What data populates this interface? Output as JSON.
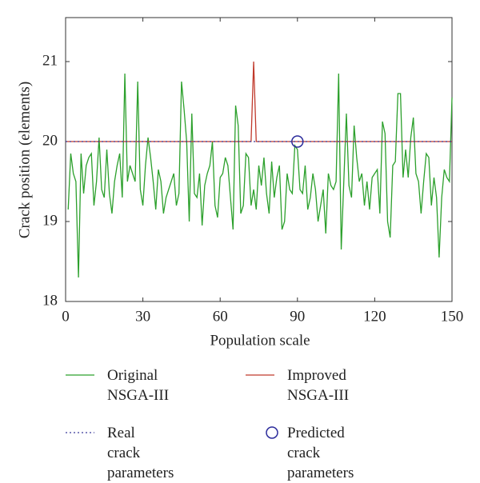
{
  "chart_data": {
    "type": "line",
    "xlabel": "Population scale",
    "ylabel": "Crack position (elements)",
    "xlim": [
      0,
      150
    ],
    "ylim": [
      18,
      21.55
    ],
    "xticks": [
      0,
      30,
      60,
      90,
      120,
      150
    ],
    "yticks": [
      18,
      19,
      20,
      21
    ],
    "series": [
      {
        "name": "Original NSGA-III",
        "color": "#2ca02c",
        "style": "solid",
        "x": [
          1,
          2,
          3,
          4,
          5,
          6,
          7,
          8,
          9,
          10,
          11,
          12,
          13,
          14,
          15,
          16,
          17,
          18,
          19,
          20,
          21,
          22,
          23,
          24,
          25,
          26,
          27,
          28,
          29,
          30,
          31,
          32,
          33,
          34,
          35,
          36,
          37,
          38,
          39,
          40,
          41,
          42,
          43,
          44,
          45,
          46,
          47,
          48,
          49,
          50,
          51,
          52,
          53,
          54,
          55,
          56,
          57,
          58,
          59,
          60,
          61,
          62,
          63,
          64,
          65,
          66,
          67,
          68,
          69,
          70,
          71,
          72,
          73,
          74,
          75,
          76,
          77,
          78,
          79,
          80,
          81,
          82,
          83,
          84,
          85,
          86,
          87,
          88,
          89,
          90,
          91,
          92,
          93,
          94,
          95,
          96,
          97,
          98,
          99,
          100,
          101,
          102,
          103,
          104,
          105,
          106,
          107,
          108,
          109,
          110,
          111,
          112,
          113,
          114,
          115,
          116,
          117,
          118,
          119,
          120,
          121,
          122,
          123,
          124,
          125,
          126,
          127,
          128,
          129,
          130,
          131,
          132,
          133,
          134,
          135,
          136,
          137,
          138,
          139,
          140,
          141,
          142,
          143,
          144,
          145,
          146,
          147,
          148,
          149,
          150
        ],
        "values": [
          19.15,
          19.85,
          19.6,
          19.5,
          18.3,
          19.85,
          19.35,
          19.7,
          19.8,
          19.85,
          19.2,
          19.5,
          20.05,
          19.4,
          19.3,
          19.9,
          19.35,
          19.1,
          19.5,
          19.7,
          19.85,
          19.3,
          20.85,
          19.5,
          19.7,
          19.6,
          19.5,
          20.75,
          19.4,
          19.2,
          19.7,
          20.05,
          19.8,
          19.5,
          19.15,
          19.65,
          19.5,
          19.1,
          19.3,
          19.4,
          19.5,
          19.6,
          19.2,
          19.35,
          20.75,
          20.4,
          20.0,
          19.0,
          20.35,
          19.35,
          19.3,
          19.6,
          18.95,
          19.45,
          19.6,
          19.7,
          20.0,
          19.2,
          19.05,
          19.55,
          19.6,
          19.8,
          19.7,
          19.3,
          18.9,
          20.45,
          20.2,
          19.1,
          19.2,
          19.85,
          19.8,
          19.2,
          19.4,
          19.15,
          19.7,
          19.45,
          19.8,
          19.35,
          19.1,
          19.75,
          19.3,
          19.55,
          19.7,
          18.9,
          19.0,
          19.6,
          19.4,
          19.35,
          19.95,
          19.9,
          19.4,
          19.35,
          19.7,
          19.15,
          19.3,
          19.6,
          19.4,
          19.0,
          19.2,
          19.4,
          18.85,
          19.6,
          19.45,
          19.4,
          19.5,
          20.85,
          18.65,
          19.5,
          20.35,
          19.45,
          19.3,
          20.2,
          19.8,
          19.5,
          19.6,
          19.2,
          19.5,
          19.15,
          19.55,
          19.6,
          19.65,
          19.1,
          20.25,
          20.1,
          19.0,
          18.8,
          19.7,
          19.75,
          20.6,
          20.6,
          19.55,
          19.9,
          19.55,
          20.05,
          20.3,
          19.6,
          19.5,
          19.1,
          19.5,
          19.85,
          19.8,
          19.2,
          19.55,
          19.3,
          18.55,
          19.3,
          19.65,
          19.55,
          19.5,
          20.55
        ]
      },
      {
        "name": "Improved NSGA-III",
        "color": "#c0392b",
        "style": "solid",
        "x": [
          0,
          72,
          73,
          74,
          150
        ],
        "values": [
          20,
          20,
          21,
          20,
          20
        ]
      },
      {
        "name": "Real crack parameters",
        "color": "#3a3a9a",
        "style": "dotted",
        "x": [
          0,
          150
        ],
        "values": [
          20,
          20
        ]
      },
      {
        "name": "Predicted crack parameters",
        "color": "#2b2b9b",
        "style": "circle",
        "x": [
          90
        ],
        "values": [
          20
        ]
      }
    ]
  }
}
